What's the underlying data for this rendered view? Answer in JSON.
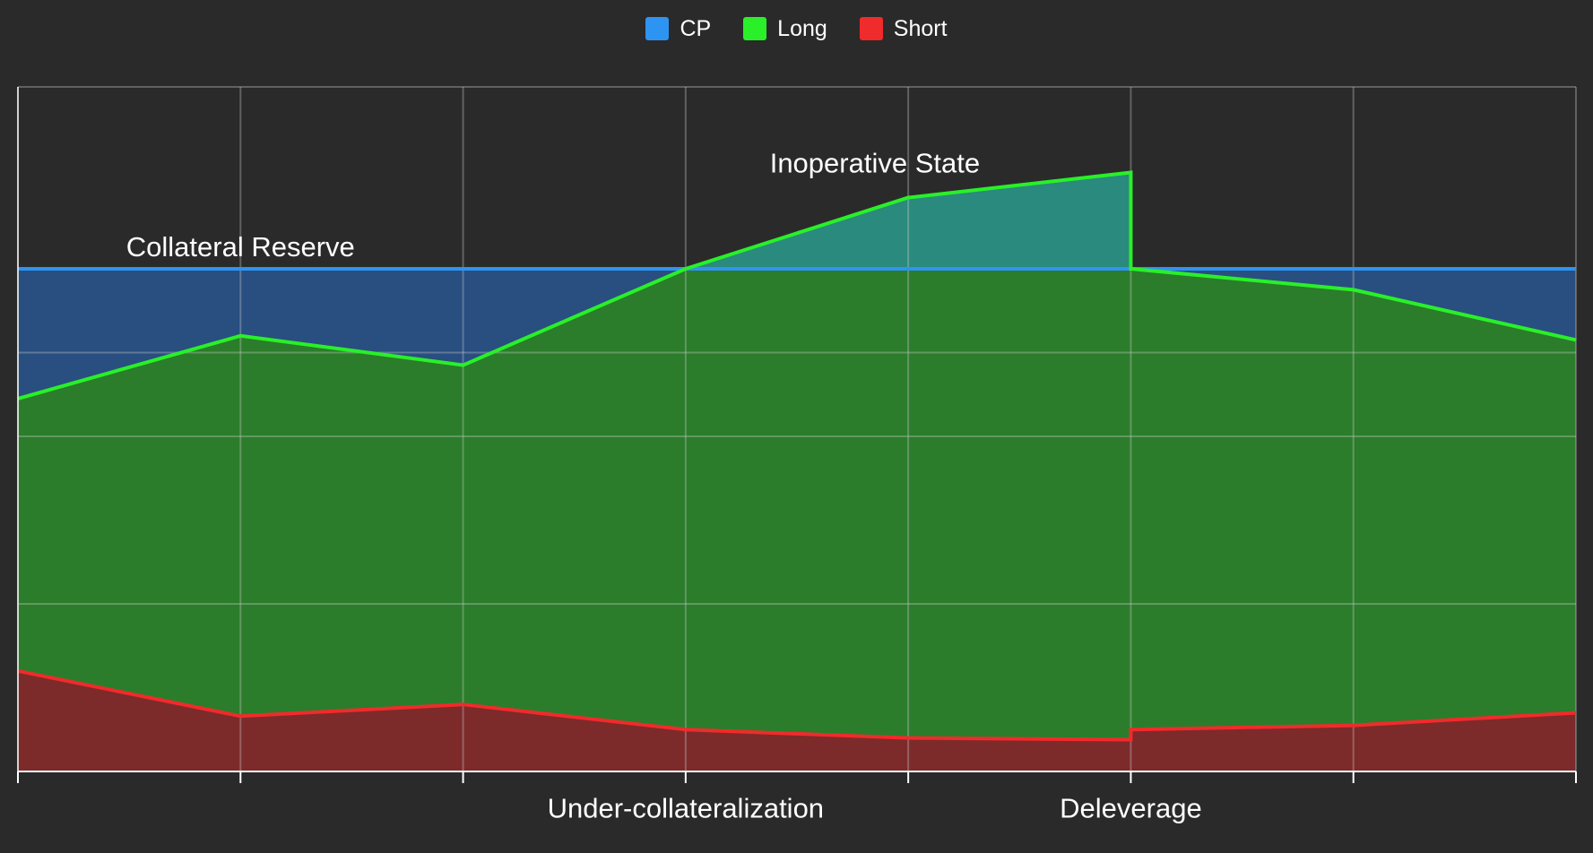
{
  "chart_data": {
    "type": "area",
    "x": [
      0,
      1,
      2,
      3,
      4,
      5,
      5,
      6,
      7
    ],
    "series": [
      {
        "name": "CP",
        "color": "#2e94f2",
        "fill": "#294e80",
        "values": [
          6,
          6,
          6,
          6,
          6,
          6,
          6,
          6,
          6
        ]
      },
      {
        "name": "Long",
        "color": "#29f029",
        "fill": "#2b7d2b",
        "values": [
          4.45,
          5.2,
          4.85,
          6,
          6.85,
          7.15,
          6,
          5.75,
          5.15
        ]
      },
      {
        "name": "Short",
        "color": "#f02b2b",
        "fill": "#7d2a2b",
        "values": [
          1.2,
          0.66,
          0.8,
          0.5,
          0.4,
          0.38,
          0.5,
          0.55,
          0.7
        ]
      }
    ],
    "overlap_fill": "#2a8a7d",
    "xlim": [
      0,
      7
    ],
    "ylim": [
      0,
      6
    ],
    "grid": true,
    "legend_position": "top-center",
    "annotations": [
      {
        "text": "Collateral Reserve",
        "x": 1,
        "y": 6.15
      },
      {
        "text": "Inoperative State",
        "x": 3.85,
        "y": 7.15
      },
      {
        "text": "Under-collateralization",
        "x": 3,
        "y": -0.55
      },
      {
        "text": "Deleverage",
        "x": 5,
        "y": -0.55
      }
    ]
  }
}
